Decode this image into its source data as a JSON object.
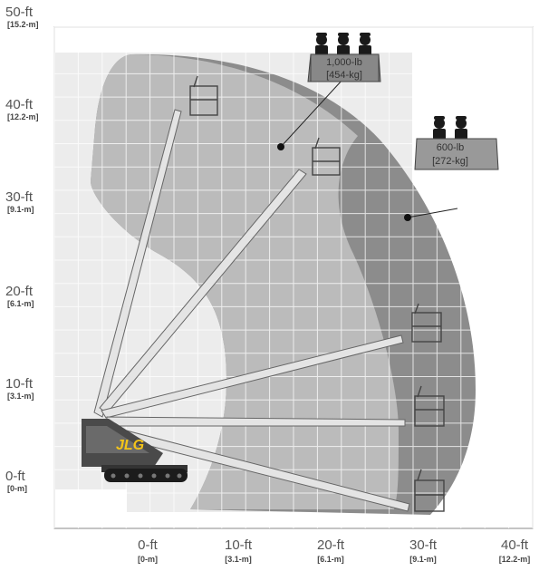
{
  "y_axis": {
    "labels": [
      {
        "ft": "50-ft",
        "m": "[15.2-m]"
      },
      {
        "ft": "40-ft",
        "m": "[12.2-m]"
      },
      {
        "ft": "30-ft",
        "m": "[9.1-m]"
      },
      {
        "ft": "20-ft",
        "m": "[6.1-m]"
      },
      {
        "ft": "10-ft",
        "m": "[3.1-m]"
      },
      {
        "ft": "0-ft",
        "m": "[0-m]"
      }
    ]
  },
  "x_axis": {
    "labels": [
      {
        "ft": "0-ft",
        "m": "[0-m]"
      },
      {
        "ft": "10-ft",
        "m": "[3.1-m]"
      },
      {
        "ft": "20-ft",
        "m": "[6.1-m]"
      },
      {
        "ft": "30-ft",
        "m": "[9.1-m]"
      },
      {
        "ft": "40-ft",
        "m": "[12.2-m]"
      }
    ]
  },
  "capacity_zones": {
    "high": {
      "lb": "1,000-lb",
      "kg": "[454-kg]",
      "people": 3
    },
    "low": {
      "lb": "600-lb",
      "kg": "[272-kg]",
      "people": 2
    }
  },
  "brand": "JLG",
  "colors": {
    "light_zone": "#ebebeb",
    "mid_zone": "#b9b9b9",
    "dark_zone": "#8c8c8c",
    "boom": "#e2e2e2",
    "machine": "#4a4a4a"
  }
}
